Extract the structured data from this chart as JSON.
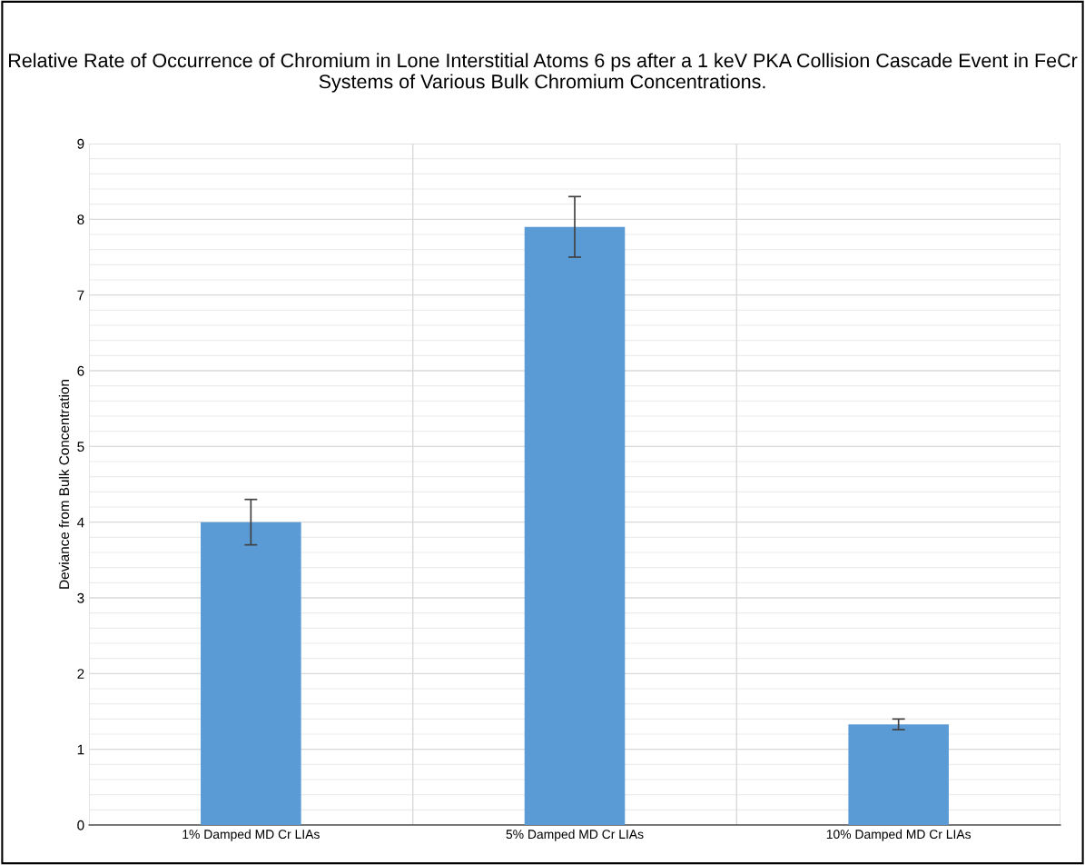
{
  "chart_data": {
    "type": "bar",
    "title": "Relative Rate of Occurrence of Chromium in Lone Interstitial Atoms 6 ps after a 1 keV PKA Collision Cascade Event in FeCr Systems of Various Bulk Chromium Concentrations.",
    "ylabel": "Deviance from Bulk Concentration",
    "categories": [
      "1% Damped MD Cr LIAs",
      "5% Damped MD Cr LIAs",
      "10% Damped MD Cr LIAs"
    ],
    "values": [
      4.0,
      7.9,
      1.33
    ],
    "errors": [
      0.3,
      0.4,
      0.07
    ],
    "color": "#5b9bd5",
    "ylim": [
      0,
      9
    ],
    "yticks": [
      0,
      1,
      2,
      3,
      4,
      5,
      6,
      7,
      8,
      9
    ],
    "grid": true
  }
}
